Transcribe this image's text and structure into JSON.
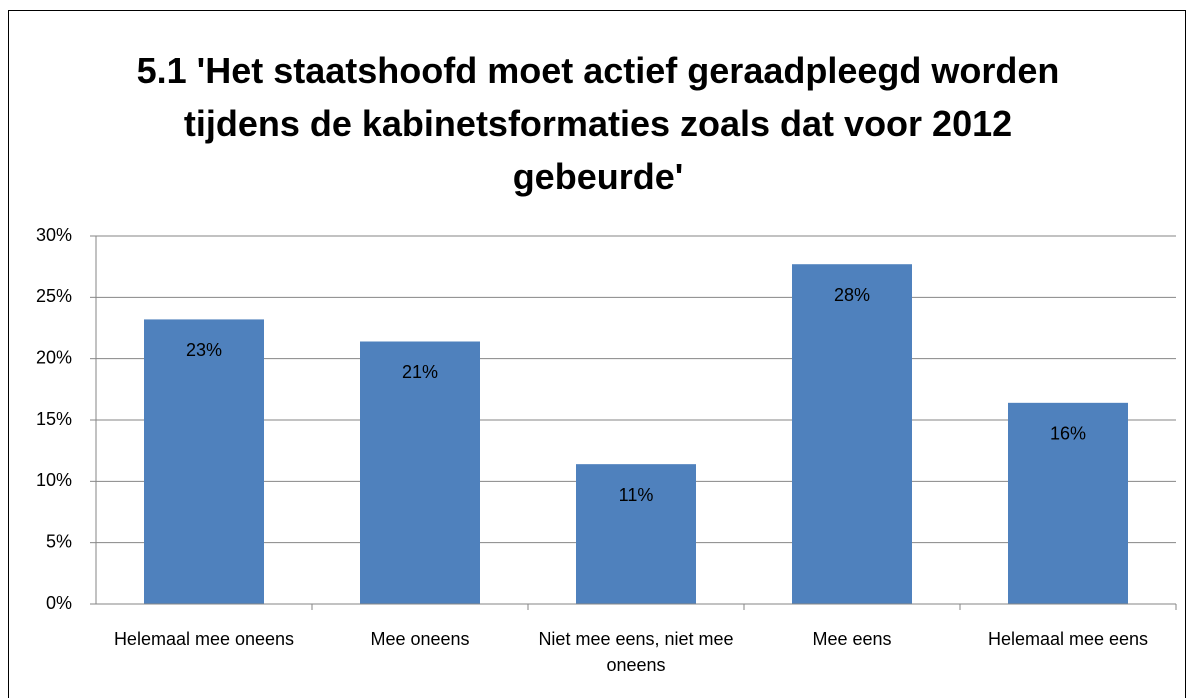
{
  "chart_data": {
    "type": "bar",
    "title": "5.1 'Het staatshoofd moet actief geraadpleegd worden tijdens de kabinetsformaties zoals dat voor 2012 gebeurde'",
    "categories": [
      "Helemaal mee oneens",
      "Mee oneens",
      "Niet mee eens, niet mee oneens",
      "Mee eens",
      "Helemaal mee eens"
    ],
    "values": [
      23.2,
      21.4,
      11.4,
      27.7,
      16.4
    ],
    "value_labels": [
      "23%",
      "21%",
      "11%",
      "28%",
      "16%"
    ],
    "color": "#4f81bd",
    "ylim": [
      0,
      30
    ],
    "yticks": [
      {
        "value": 0,
        "label": "0%"
      },
      {
        "value": 5,
        "label": "5%"
      },
      {
        "value": 10,
        "label": "10%"
      },
      {
        "value": 15,
        "label": "15%"
      },
      {
        "value": 20,
        "label": "20%"
      },
      {
        "value": 25,
        "label": "25%"
      },
      {
        "value": 30,
        "label": "30%"
      }
    ],
    "grid": true
  }
}
